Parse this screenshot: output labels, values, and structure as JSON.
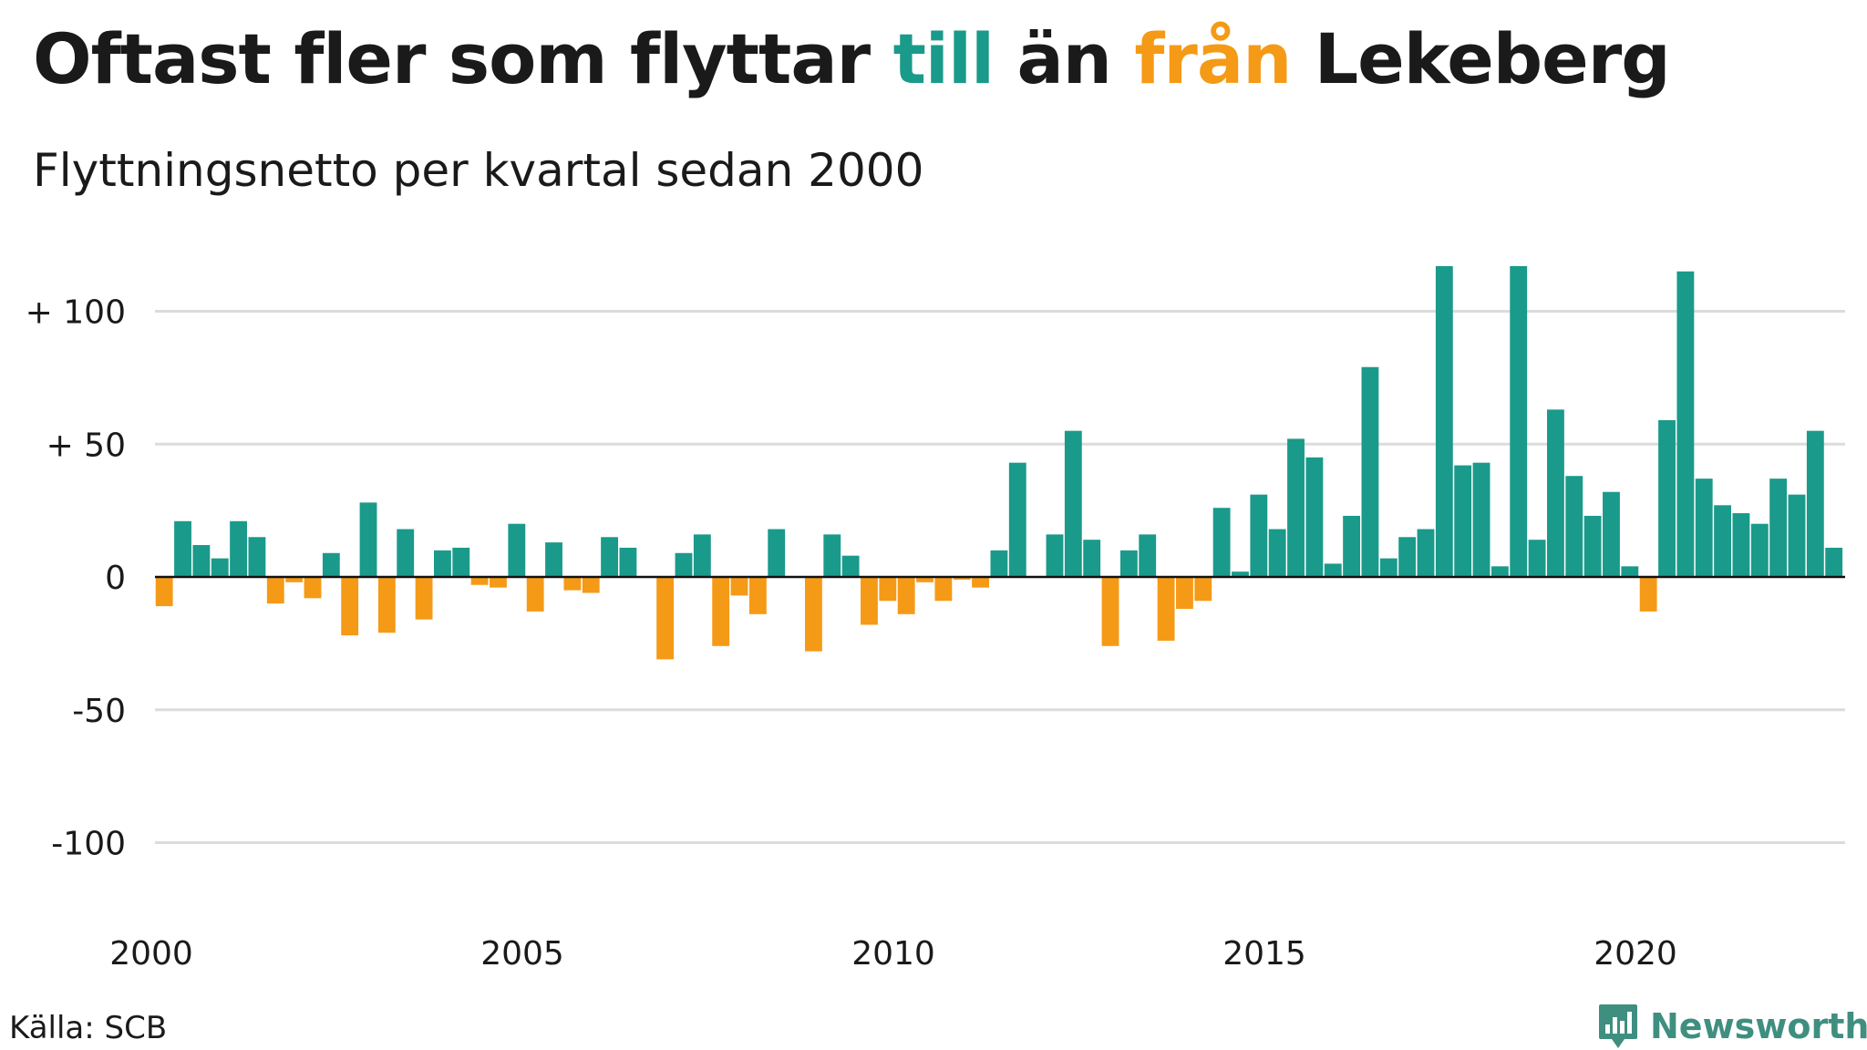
{
  "header": {
    "title_parts": [
      "Oftast fler som flyttar ",
      "till",
      " än ",
      "från",
      " Lekeberg"
    ],
    "subtitle": "Flyttningsnetto per kvartal sedan 2000"
  },
  "footer": {
    "source": "Källa: SCB",
    "brand": "Newsworthy",
    "brand_icon": "newsworthy-logo-icon"
  },
  "colors": {
    "positive": "#1a9a8a",
    "negative": "#f59a16",
    "grid": "#dcdcdc",
    "axis": "#111111",
    "brand": "#3f8f80"
  },
  "chart_data": {
    "type": "bar",
    "start_year": 2000,
    "periods_per_year": 4,
    "values": [
      -11,
      21,
      12,
      7,
      21,
      15,
      -10,
      -2,
      -8,
      9,
      -22,
      28,
      -21,
      18,
      -16,
      10,
      11,
      -3,
      -4,
      20,
      -13,
      13,
      -5,
      -6,
      15,
      11,
      0,
      -31,
      9,
      16,
      -26,
      -7,
      -14,
      18,
      0,
      -28,
      16,
      8,
      -18,
      -9,
      -14,
      -2,
      -9,
      -1,
      -4,
      10,
      43,
      0,
      16,
      55,
      14,
      -26,
      10,
      16,
      -24,
      -12,
      -9,
      26,
      2,
      31,
      18,
      52,
      45,
      5,
      23,
      79,
      7,
      15,
      18,
      117,
      42,
      43,
      4,
      117,
      14,
      63,
      38,
      23,
      32,
      4,
      -13,
      59,
      115,
      37,
      27,
      24,
      20,
      37,
      31,
      55,
      11
    ],
    "ylim": [
      -125,
      125
    ],
    "yticks": [
      100,
      50,
      0,
      -50,
      -100
    ],
    "ytick_labels": [
      "+ 100",
      "+  50",
      "0",
      "-50",
      "-100"
    ],
    "xticks": [
      2000,
      2005,
      2010,
      2015,
      2020
    ],
    "xtick_labels": [
      "2000",
      "2005",
      "2010",
      "2015",
      "2020"
    ],
    "grid": true,
    "legend": "none"
  }
}
